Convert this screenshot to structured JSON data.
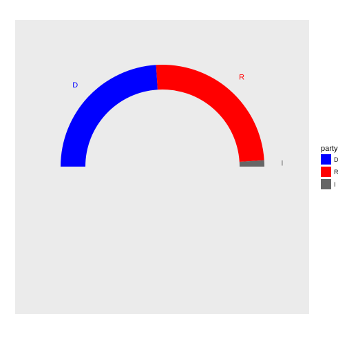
{
  "chart_data": {
    "type": "pie",
    "subtype": "half-donut",
    "title": "",
    "legend": {
      "title": "party",
      "position": "right",
      "entries": [
        "D",
        "R",
        "I"
      ]
    },
    "slices": [
      {
        "label": "D",
        "value": 48,
        "color": "#0000FF"
      },
      {
        "label": "R",
        "value": 50,
        "color": "#FF0000"
      },
      {
        "label": "I",
        "value": 2,
        "color": "#666666"
      }
    ],
    "panel_background": "#EBEBEB",
    "grid": false
  }
}
